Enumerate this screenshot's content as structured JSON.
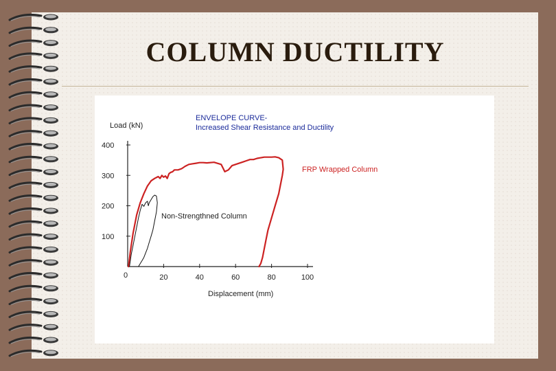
{
  "slide": {
    "title": "COLUMN DUCTILITY"
  },
  "chart_data": {
    "type": "line",
    "title": "ENVELOPE CURVE-",
    "subtitle": "Increased Shear Resistance and Ductility",
    "xlabel": "Displacement (mm)",
    "ylabel": "Load (kN)",
    "xlim": [
      0,
      100
    ],
    "ylim": [
      0,
      400
    ],
    "xticks": [
      "20",
      "40",
      "60",
      "80",
      "100"
    ],
    "yticks": [
      "100",
      "200",
      "300",
      "400"
    ],
    "origin_label": "0",
    "grid": false,
    "colors": {
      "frp": "#cc2222",
      "plain": "#111111",
      "title": "#1a2a9a",
      "axis": "#222222"
    },
    "series": [
      {
        "name": "FRP Wrapped Column",
        "x": [
          0.5,
          1.5,
          3,
          5,
          7,
          9,
          11,
          13,
          15,
          17,
          18,
          19,
          20,
          21,
          22,
          23,
          24,
          25,
          26,
          28,
          30,
          32,
          34,
          36,
          38,
          40,
          42,
          44,
          48,
          52,
          54,
          56,
          58,
          60,
          62,
          64,
          66,
          68,
          70,
          72,
          74,
          76,
          78,
          80,
          82,
          84,
          86,
          86.5,
          86,
          85,
          84,
          82,
          80,
          78,
          77,
          76,
          75,
          74,
          73
        ],
        "y": [
          0,
          50,
          110,
          170,
          210,
          240,
          265,
          282,
          290,
          296,
          290,
          300,
          294,
          298,
          290,
          306,
          310,
          312,
          318,
          318,
          322,
          330,
          336,
          338,
          340,
          342,
          342,
          341,
          343,
          336,
          312,
          318,
          332,
          336,
          340,
          344,
          348,
          352,
          352,
          356,
          358,
          360,
          360,
          360,
          361,
          358,
          350,
          320,
          300,
          270,
          240,
          200,
          160,
          120,
          90,
          60,
          30,
          10,
          0
        ]
      },
      {
        "name": "Non-Strengthned Column",
        "x": [
          1,
          1.5,
          2,
          3,
          4,
          5,
          6,
          7,
          8,
          9,
          10,
          11,
          11.5,
          12,
          13,
          14,
          15,
          16,
          16.5,
          16,
          15,
          14,
          13,
          12,
          11,
          10,
          9,
          8,
          7,
          6
        ],
        "y": [
          0,
          20,
          40,
          70,
          100,
          130,
          160,
          185,
          205,
          198,
          210,
          215,
          200,
          210,
          220,
          230,
          235,
          232,
          210,
          180,
          150,
          120,
          100,
          80,
          60,
          45,
          30,
          20,
          10,
          0
        ]
      }
    ]
  }
}
